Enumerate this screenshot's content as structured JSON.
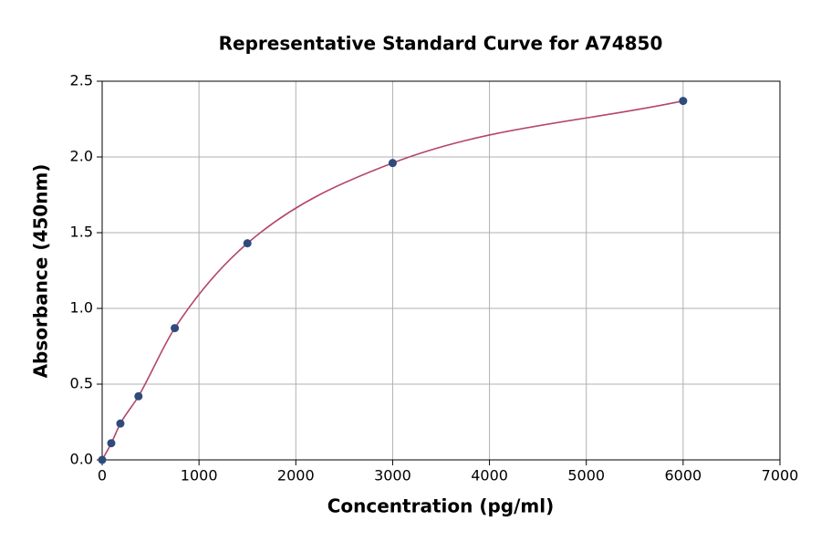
{
  "chart_data": {
    "type": "scatter",
    "title": "Representative Standard Curve for A74850",
    "x_label": "Concentration (pg/ml)",
    "y_label": "Absorbance (450nm)",
    "x": [
      0,
      94,
      188,
      375,
      750,
      1500,
      3000,
      6000
    ],
    "series": [
      {
        "name": "A74850",
        "color": "#2f4b7c",
        "line_color": "#b5466b",
        "values": [
          0.0,
          0.11,
          0.24,
          0.42,
          0.87,
          1.43,
          1.96,
          2.37
        ]
      }
    ],
    "xlim": [
      0,
      7000
    ],
    "xticks": [
      0,
      1000,
      2000,
      3000,
      4000,
      5000,
      6000,
      7000
    ],
    "ylim": [
      0,
      2.5
    ],
    "yticks": [
      {
        "value": 0,
        "label": "0.0"
      },
      {
        "value": 0.5,
        "label": "0.5"
      },
      {
        "value": 1,
        "label": "1.0"
      },
      {
        "value": 1.5,
        "label": "1.5"
      },
      {
        "value": 2,
        "label": "2.0"
      },
      {
        "value": 2.5,
        "label": "2.5"
      }
    ],
    "grid": true
  }
}
